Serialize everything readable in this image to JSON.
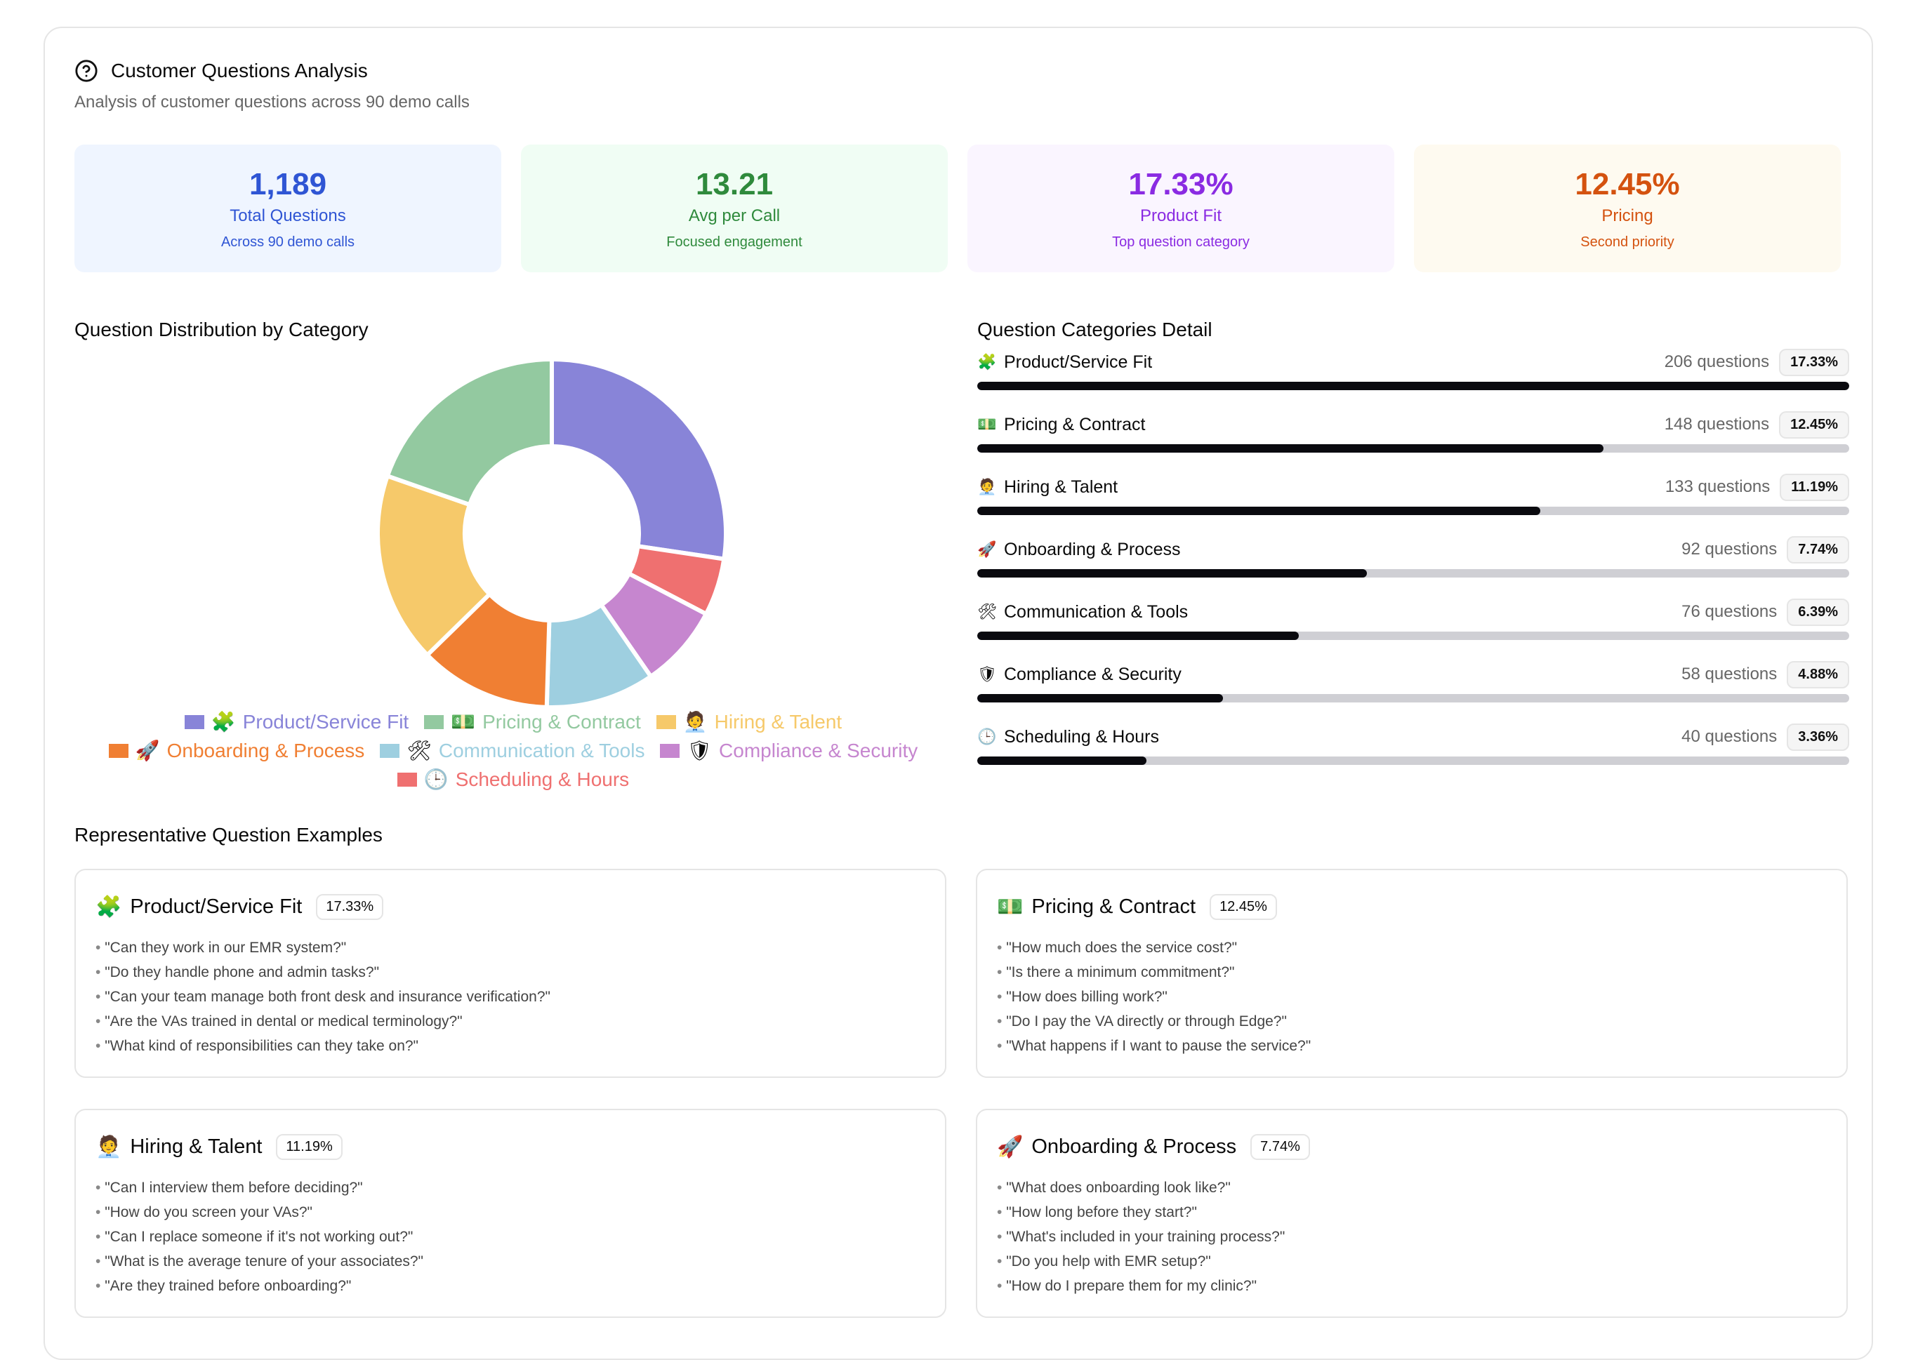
{
  "header": {
    "title": "Customer Questions Analysis",
    "subtitle": "Analysis of customer questions across 90 demo calls"
  },
  "stats": [
    {
      "value": "1,189",
      "label": "Total Questions",
      "sub": "Across 90 demo calls",
      "color": "#2f55d4",
      "bg": "#eff5ff"
    },
    {
      "value": "13.21",
      "label": "Avg per Call",
      "sub": "Focused engagement",
      "color": "#2f8a3c",
      "bg": "#f0fdf4"
    },
    {
      "value": "17.33%",
      "label": "Product Fit",
      "sub": "Top question category",
      "color": "#8a2be2",
      "bg": "#faf5ff"
    },
    {
      "value": "12.45%",
      "label": "Pricing",
      "sub": "Second priority",
      "color": "#d4520f",
      "bg": "#fefaf0"
    }
  ],
  "distribution_title": "Question Distribution by Category",
  "detail_title": "Question Categories Detail",
  "examples_title": "Representative Question Examples",
  "chart_data": {
    "type": "pie",
    "title": "Question Distribution by Category",
    "categories": [
      "Product/Service Fit",
      "Pricing & Contract",
      "Hiring & Talent",
      "Onboarding & Process",
      "Communication & Tools",
      "Compliance & Security",
      "Scheduling & Hours"
    ],
    "values": [
      206,
      148,
      133,
      92,
      76,
      58,
      40
    ],
    "legend": "bottom",
    "slice_order": [
      "Product/Service Fit",
      "Scheduling & Hours",
      "Compliance & Security",
      "Communication & Tools",
      "Onboarding & Process",
      "Hiring & Talent",
      "Pricing & Contract"
    ],
    "slice_values": [
      206,
      40,
      58,
      76,
      92,
      133,
      148
    ],
    "slice_colors": [
      "#8884d8",
      "#ef7070",
      "#c686cf",
      "#9ecfe0",
      "#f07f33",
      "#f6c96a",
      "#93c9a0"
    ]
  },
  "legend": [
    {
      "icon": "🧩",
      "label": "Product/Service Fit",
      "color": "#8884d8"
    },
    {
      "icon": "💵",
      "label": "Pricing & Contract",
      "color": "#93c9a0"
    },
    {
      "icon": "🧑‍💼",
      "label": "Hiring & Talent",
      "color": "#f6c96a"
    },
    {
      "icon": "🚀",
      "label": "Onboarding & Process",
      "color": "#f07f33"
    },
    {
      "icon": "🛠",
      "label": "Communication & Tools",
      "color": "#9ecfe0"
    },
    {
      "icon": "🛡",
      "label": "Compliance & Security",
      "color": "#c686cf"
    },
    {
      "icon": "🕒",
      "label": "Scheduling & Hours",
      "color": "#ef7070"
    }
  ],
  "categories": [
    {
      "icon": "🧩",
      "name": "Product/Service Fit",
      "count": "206 questions",
      "pct": "17.33%",
      "fill": 1.0
    },
    {
      "icon": "💵",
      "name": "Pricing & Contract",
      "count": "148 questions",
      "pct": "12.45%",
      "fill": 0.718
    },
    {
      "icon": "🧑‍💼",
      "name": "Hiring & Talent",
      "count": "133 questions",
      "pct": "11.19%",
      "fill": 0.646
    },
    {
      "icon": "🚀",
      "name": "Onboarding & Process",
      "count": "92 questions",
      "pct": "7.74%",
      "fill": 0.447
    },
    {
      "icon": "🛠",
      "name": "Communication & Tools",
      "count": "76 questions",
      "pct": "6.39%",
      "fill": 0.369
    },
    {
      "icon": "🛡",
      "name": "Compliance & Security",
      "count": "58 questions",
      "pct": "4.88%",
      "fill": 0.282
    },
    {
      "icon": "🕒",
      "name": "Scheduling & Hours",
      "count": "40 questions",
      "pct": "3.36%",
      "fill": 0.194
    }
  ],
  "examples": [
    {
      "icon": "🧩",
      "title": "Product/Service Fit",
      "pct": "17.33%",
      "questions": [
        "\"Can they work in our EMR system?\"",
        "\"Do they handle phone and admin tasks?\"",
        "\"Can your team manage both front desk and insurance verification?\"",
        "\"Are the VAs trained in dental or medical terminology?\"",
        "\"What kind of responsibilities can they take on?\""
      ]
    },
    {
      "icon": "💵",
      "title": "Pricing & Contract",
      "pct": "12.45%",
      "questions": [
        "\"How much does the service cost?\"",
        "\"Is there a minimum commitment?\"",
        "\"How does billing work?\"",
        "\"Do I pay the VA directly or through Edge?\"",
        "\"What happens if I want to pause the service?\""
      ]
    },
    {
      "icon": "🧑‍💼",
      "title": "Hiring & Talent",
      "pct": "11.19%",
      "questions": [
        "\"Can I interview them before deciding?\"",
        "\"How do you screen your VAs?\"",
        "\"Can I replace someone if it's not working out?\"",
        "\"What is the average tenure of your associates?\"",
        "\"Are they trained before onboarding?\""
      ]
    },
    {
      "icon": "🚀",
      "title": "Onboarding & Process",
      "pct": "7.74%",
      "questions": [
        "\"What does onboarding look like?\"",
        "\"How long before they start?\"",
        "\"What's included in your training process?\"",
        "\"Do you help with EMR setup?\"",
        "\"How do I prepare them for my clinic?\""
      ]
    }
  ]
}
